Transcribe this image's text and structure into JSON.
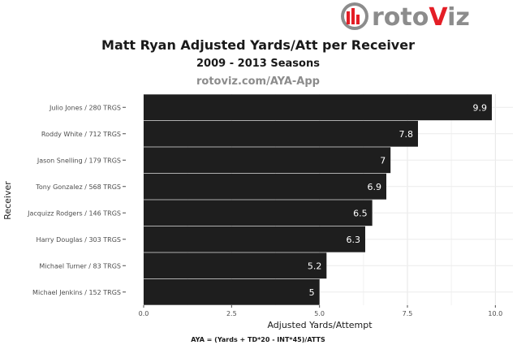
{
  "logo": {
    "text_main": "roto",
    "text_accent": "V",
    "text_tail": "iz",
    "accent_color": "#e41e26",
    "main_color": "#8c8c8c"
  },
  "chart_data": {
    "type": "bar",
    "orientation": "horizontal",
    "title": "Matt Ryan Adjusted Yards/Att per Receiver",
    "subtitle": "2009 - 2013 Seasons",
    "source": "rotoviz.com/AYA-App",
    "xlabel": "Adjusted Yards/Attempt",
    "ylabel": "Receiver",
    "footnote": "AYA = (Yards + TD*20 - INT*45)/ATTS",
    "xlim": [
      0,
      10.5
    ],
    "xticks": [
      0.0,
      2.5,
      5.0,
      7.5,
      10.0
    ],
    "xtick_labels": [
      "0.0",
      "2.5",
      "5.0",
      "7.5",
      "10.0"
    ],
    "categories": [
      "Julio Jones / 280 TRGS",
      "Roddy White / 712 TRGS",
      "Jason Snelling / 179 TRGS",
      "Tony Gonzalez / 568 TRGS",
      "Jacquizz Rodgers / 146 TRGS",
      "Harry Douglas / 303 TRGS",
      "Michael Turner / 83 TRGS",
      "Michael Jenkins / 152 TRGS"
    ],
    "values": [
      9.9,
      7.8,
      7.02,
      6.9,
      6.5,
      6.3,
      5.2,
      5.0
    ],
    "value_labels": [
      "9.9",
      "7.8",
      "7",
      "6.9",
      "6.5",
      "6.3",
      "5.2",
      "5"
    ],
    "bar_color": "#1e1e1e",
    "grid": true
  }
}
